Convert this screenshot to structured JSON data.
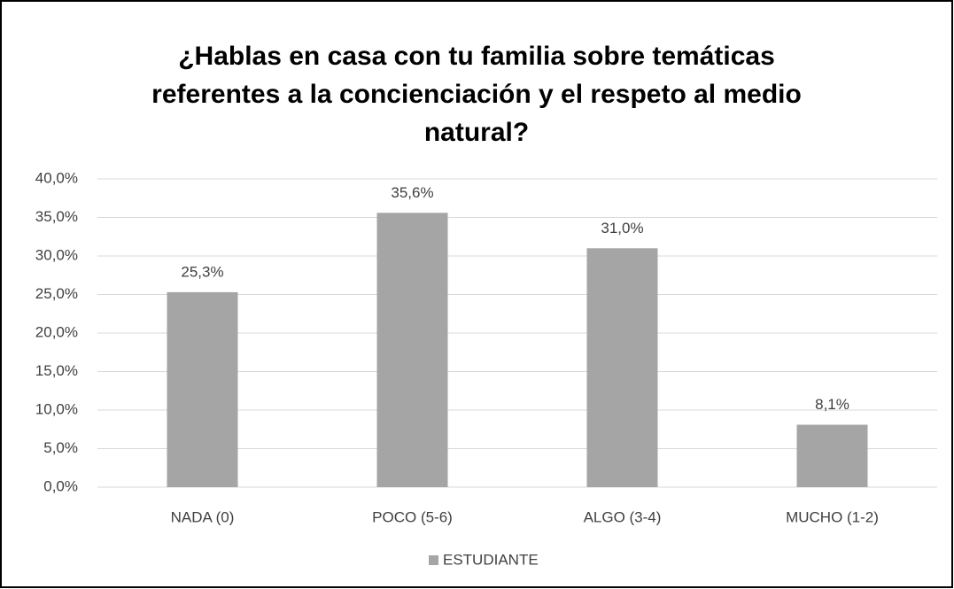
{
  "chart_data": {
    "type": "bar",
    "title": "¿Hablas en casa con tu familia sobre temáticas referentes a la concienciación y el respeto al medio natural?",
    "categories": [
      "NADA (0)",
      "POCO (5-6)",
      "ALGO (3-4)",
      "MUCHO (1-2)"
    ],
    "series": [
      {
        "name": "ESTUDIANTE",
        "color": "#a5a5a5",
        "values": [
          25.3,
          35.6,
          31.0,
          8.1
        ],
        "value_labels": [
          "25,3%",
          "35,6%",
          "31,0%",
          "8,1%"
        ]
      }
    ],
    "ylim": [
      0,
      40
    ],
    "yticks": [
      {
        "value": 0,
        "label": "0,0%"
      },
      {
        "value": 5,
        "label": "5,0%"
      },
      {
        "value": 10,
        "label": "10,0%"
      },
      {
        "value": 15,
        "label": "15,0%"
      },
      {
        "value": 20,
        "label": "20,0%"
      },
      {
        "value": 25,
        "label": "25,0%"
      },
      {
        "value": 30,
        "label": "30,0%"
      },
      {
        "value": 35,
        "label": "35,0%"
      },
      {
        "value": 40,
        "label": "40,0%"
      }
    ],
    "grid": true,
    "legend": "bottom"
  }
}
